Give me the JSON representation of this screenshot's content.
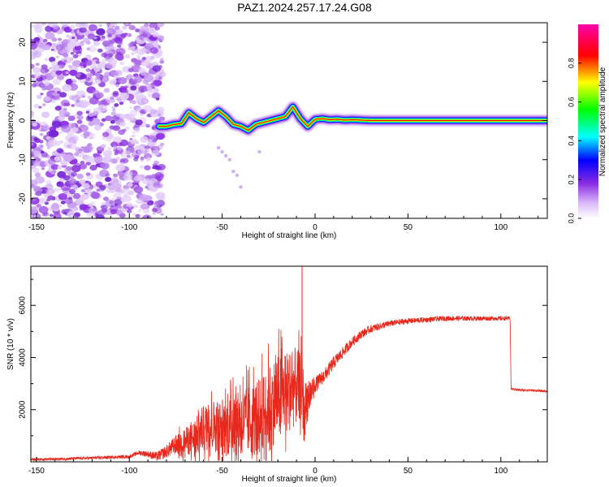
{
  "figure_title": "PAZ1.2024.257.17.24.G08",
  "chart_data": [
    {
      "type": "heatmap",
      "title": "PAZ1.2024.257.17.24.G08",
      "xlabel": "Height of straight line (km)",
      "ylabel": "Frequency (Hz)",
      "xlim": [
        -153,
        125
      ],
      "ylim": [
        -25,
        25
      ],
      "x_ticks": [
        -150,
        -100,
        -50,
        0,
        50,
        100
      ],
      "x_tick_labels": [
        "-150",
        "-100",
        "-50",
        "0",
        "50",
        "100"
      ],
      "y_ticks": [
        -20,
        -10,
        0,
        10,
        20
      ],
      "y_tick_labels": [
        "-20",
        "-10",
        "0",
        "10",
        "20"
      ],
      "colorbar": {
        "label": "Normalized spectral amplitude",
        "range": [
          0,
          1
        ],
        "ticks": [
          0.0,
          0.2,
          0.4,
          0.6,
          0.8
        ],
        "tick_labels": [
          "0.0",
          "0.2",
          "0.4",
          "0.6",
          "0.8"
        ],
        "colormap": "rainbow",
        "colors": [
          "#ffffff",
          "#8a2be2",
          "#0000ff",
          "#00ffff",
          "#00ff00",
          "#ffff00",
          "#ff0000",
          "#ff00aa"
        ]
      },
      "noise_region_x": [
        -153,
        -84
      ],
      "signal_track": {
        "x": [
          -84,
          -80,
          -76,
          -72,
          -68,
          -64,
          -60,
          -56,
          -52,
          -48,
          -44,
          -40,
          -36,
          -32,
          -28,
          -24,
          -20,
          -16,
          -12,
          -8,
          -4,
          0,
          4,
          8,
          12,
          16,
          20,
          30,
          50,
          80,
          125
        ],
        "y": [
          -1.5,
          -1.5,
          -1.0,
          -0.8,
          2.0,
          0.5,
          -0.5,
          1.0,
          2.5,
          1.0,
          -1.0,
          -1.5,
          -2.5,
          -1.0,
          -0.5,
          0.0,
          0.5,
          1.0,
          3.5,
          0.5,
          -1.5,
          0.3,
          0.5,
          0.2,
          0.3,
          0.1,
          0.2,
          0.0,
          0.0,
          0.0,
          0.0
        ],
        "peak_amplitude": 1.0
      }
    },
    {
      "type": "line",
      "xlabel": "Height of straight line (km)",
      "ylabel": "SNR (10 * v/v)",
      "xlim": [
        -153,
        125
      ],
      "ylim": [
        0,
        7500
      ],
      "x_ticks": [
        -150,
        -100,
        -50,
        0,
        50,
        100
      ],
      "x_tick_labels": [
        "-150",
        "-100",
        "-50",
        "0",
        "50",
        "100"
      ],
      "y_ticks": [
        2000,
        4000,
        6000
      ],
      "y_tick_labels": [
        "2000",
        "4000",
        "6000"
      ],
      "color": "#e8281c",
      "series": [
        {
          "x": [
            -153,
            -140,
            -120,
            -100,
            -95,
            -90,
            -85,
            -80,
            -75,
            -70,
            -65,
            -60,
            -55,
            -50,
            -45,
            -40,
            -35,
            -30,
            -25,
            -20,
            -15,
            -10,
            -8,
            -7,
            -6,
            -5,
            -3,
            0,
            5,
            10,
            15,
            20,
            25,
            30,
            40,
            50,
            60,
            70,
            80,
            90,
            100,
            105,
            105.5,
            110,
            115,
            125
          ],
          "y": [
            100,
            100,
            150,
            200,
            350,
            300,
            200,
            400,
            650,
            800,
            900,
            1300,
            1400,
            1350,
            1350,
            1550,
            1600,
            1700,
            2100,
            2500,
            2700,
            2900,
            2900,
            3100,
            1500,
            2300,
            2550,
            2950,
            3300,
            3800,
            4200,
            4600,
            4900,
            5100,
            5300,
            5400,
            5450,
            5500,
            5500,
            5500,
            5500,
            5500,
            2800,
            2750,
            2750,
            2700
          ],
          "noise_envelope": {
            "x": [
              -153,
              -100,
              -90,
              -80,
              -70,
              -60,
              -50,
              -40,
              -30,
              -20,
              -10,
              -5,
              0,
              10,
              20,
              40,
              60,
              80,
              105,
              106,
              125
            ],
            "amplitude": [
              50,
              60,
              120,
              250,
              500,
              900,
              1100,
              1300,
              1500,
              1700,
              1500,
              1000,
              300,
              250,
              180,
              120,
              100,
              90,
              80,
              40,
              40
            ]
          }
        }
      ],
      "spike": {
        "x": -7,
        "y": 7500
      }
    }
  ]
}
